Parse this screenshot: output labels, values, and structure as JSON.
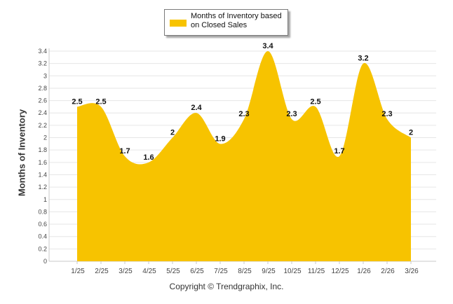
{
  "chart_data": {
    "type": "area",
    "categories": [
      "1/25",
      "2/25",
      "3/25",
      "4/25",
      "5/25",
      "6/25",
      "7/25",
      "8/25",
      "9/25",
      "10/25",
      "11/25",
      "12/25",
      "1/26",
      "2/26",
      "3/26"
    ],
    "series": [
      {
        "name": "Months of Inventory based on Closed Sales",
        "values": [
          2.5,
          2.5,
          1.7,
          1.6,
          2,
          2.4,
          1.9,
          2.3,
          3.4,
          2.3,
          2.5,
          1.7,
          3.2,
          2.3,
          2
        ]
      }
    ],
    "value_labels": [
      "2.5",
      "2.5",
      "1.7",
      "1.6",
      "2",
      "2.4",
      "1.9",
      "2.3",
      "3.4",
      "2.3",
      "2.5",
      "1.7",
      "3.2",
      "2.3",
      "2"
    ],
    "ylim": [
      0,
      3.4
    ],
    "yticks": [
      "0",
      "0.2",
      "0.4",
      "0.6",
      "0.8",
      "1",
      "1.2",
      "1.4",
      "1.6",
      "1.8",
      "2",
      "2.2",
      "2.4",
      "2.6",
      "2.8",
      "3",
      "3.2",
      "3.4"
    ],
    "ylabel": "Months of Inventory",
    "xlabel": "",
    "legend": {
      "label": "Months of Inventory based on Closed Sales",
      "placement": "top-center"
    },
    "grid": true,
    "color": "#f7c300"
  },
  "footer": {
    "copyright": "Copyright © Trendgraphix, Inc."
  }
}
